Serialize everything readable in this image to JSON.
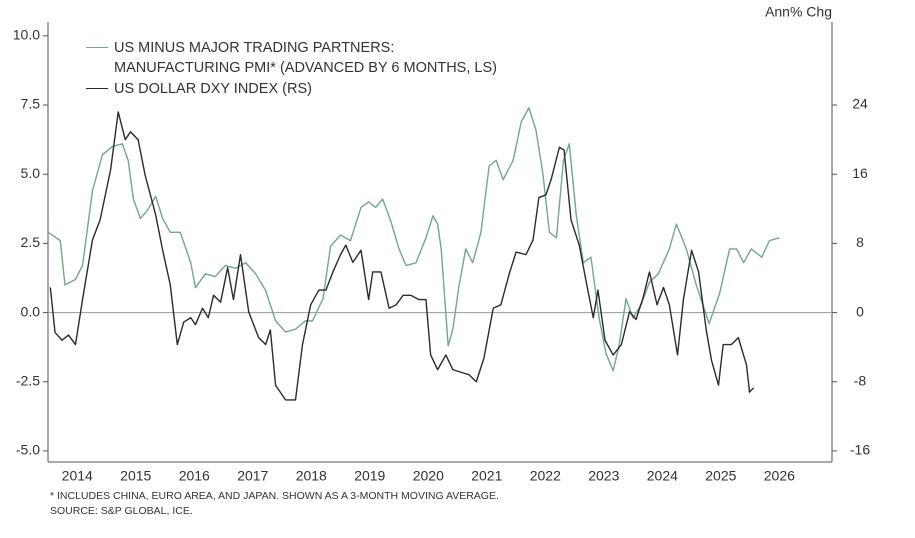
{
  "chart_data": {
    "type": "line",
    "y2_label": "Ann% Chg",
    "xlim": [
      2014.0,
      2027.4
    ],
    "xticks": [
      {
        "value": 2014.5,
        "label": "2014"
      },
      {
        "value": 2015.5,
        "label": "2015"
      },
      {
        "value": 2016.5,
        "label": "2016"
      },
      {
        "value": 2017.5,
        "label": "2017"
      },
      {
        "value": 2018.5,
        "label": "2018"
      },
      {
        "value": 2019.5,
        "label": "2019"
      },
      {
        "value": 2020.5,
        "label": "2020"
      },
      {
        "value": 2021.5,
        "label": "2021"
      },
      {
        "value": 2022.5,
        "label": "2022"
      },
      {
        "value": 2023.5,
        "label": "2023"
      },
      {
        "value": 2024.5,
        "label": "2024"
      },
      {
        "value": 2025.5,
        "label": "2025"
      },
      {
        "value": 2026.5,
        "label": "2026"
      }
    ],
    "ylim": [
      -5.4,
      10.5
    ],
    "yticks": [
      {
        "value": 10,
        "label": "10.0"
      },
      7.5,
      {
        "value": 5,
        "label": "5.0"
      },
      2.5,
      {
        "value": 0,
        "label": "0.0"
      },
      -2.5,
      {
        "value": -5,
        "label": "-5.0"
      }
    ],
    "y2lim": [
      -17.28,
      33.6
    ],
    "y2ticks": [
      24,
      16,
      8,
      0,
      -8,
      -16
    ],
    "zero_line": true,
    "series": [
      {
        "name": "US MINUS MAJOR TRADING PARTNERS:\nMANUFACTURING PMI* (ADVANCED BY 6 MONTHS, LS)",
        "color": "#6fa98b",
        "axis": "y",
        "x": [
          2014.0,
          2014.21,
          2014.29,
          2014.47,
          2014.59,
          2014.76,
          2014.93,
          2015.1,
          2015.27,
          2015.37,
          2015.46,
          2015.58,
          2015.7,
          2015.84,
          2015.96,
          2016.09,
          2016.26,
          2016.44,
          2016.52,
          2016.69,
          2016.86,
          2017.03,
          2017.21,
          2017.38,
          2017.55,
          2017.72,
          2017.89,
          2018.06,
          2018.23,
          2018.4,
          2018.52,
          2018.7,
          2018.83,
          2019.0,
          2019.17,
          2019.35,
          2019.48,
          2019.6,
          2019.72,
          2019.86,
          2020.0,
          2020.12,
          2020.29,
          2020.46,
          2020.58,
          2020.66,
          2020.72,
          2020.84,
          2020.92,
          2021.02,
          2021.14,
          2021.26,
          2021.4,
          2021.54,
          2021.66,
          2021.78,
          2021.95,
          2022.09,
          2022.22,
          2022.34,
          2022.46,
          2022.57,
          2022.69,
          2022.81,
          2022.91,
          2023.03,
          2023.15,
          2023.28,
          2023.42,
          2023.54,
          2023.66,
          2023.76,
          2023.88,
          2024.0,
          2024.14,
          2024.28,
          2024.43,
          2024.62,
          2024.74,
          2024.91,
          2025.08,
          2025.3,
          2025.48,
          2025.65,
          2025.77,
          2025.89,
          2026.02,
          2026.2,
          2026.33,
          2026.5
        ],
        "values": [
          2.9,
          2.6,
          1.0,
          1.2,
          1.7,
          4.4,
          5.7,
          6.0,
          6.1,
          5.5,
          4.1,
          3.4,
          3.7,
          4.2,
          3.4,
          2.9,
          2.9,
          1.8,
          0.9,
          1.4,
          1.3,
          1.7,
          1.6,
          1.8,
          1.4,
          0.8,
          -0.3,
          -0.7,
          -0.6,
          -0.3,
          -0.3,
          0.5,
          2.4,
          2.8,
          2.6,
          3.8,
          4.0,
          3.8,
          4.1,
          3.3,
          2.3,
          1.7,
          1.8,
          2.7,
          3.5,
          3.2,
          2.3,
          -1.2,
          -0.6,
          0.9,
          2.3,
          1.8,
          2.9,
          5.3,
          5.5,
          4.8,
          5.5,
          6.9,
          7.4,
          6.6,
          5.0,
          2.9,
          2.7,
          5.5,
          6.1,
          3.5,
          1.8,
          2.0,
          -0.2,
          -1.5,
          -2.1,
          -1.2,
          0.5,
          -0.2,
          0.3,
          1.1,
          1.4,
          2.3,
          3.2,
          2.3,
          1.0,
          -0.4,
          0.7,
          2.3,
          2.3,
          1.8,
          2.3,
          2.0,
          2.6,
          2.7
        ]
      },
      {
        "name": "US DOLLAR DXY INDEX (RS)",
        "color": "#2b2b2b",
        "axis": "y2",
        "x": [
          2014.04,
          2014.12,
          2014.24,
          2014.35,
          2014.47,
          2014.59,
          2014.76,
          2014.89,
          2015.07,
          2015.2,
          2015.32,
          2015.41,
          2015.54,
          2015.66,
          2015.84,
          2015.96,
          2016.09,
          2016.21,
          2016.32,
          2016.44,
          2016.52,
          2016.64,
          2016.74,
          2016.83,
          2016.95,
          2017.07,
          2017.17,
          2017.29,
          2017.43,
          2017.6,
          2017.72,
          2017.8,
          2017.89,
          2018.06,
          2018.23,
          2018.35,
          2018.49,
          2018.63,
          2018.75,
          2018.87,
          2019.0,
          2019.09,
          2019.21,
          2019.35,
          2019.48,
          2019.55,
          2019.69,
          2019.83,
          2019.95,
          2020.07,
          2020.2,
          2020.34,
          2020.46,
          2020.54,
          2020.66,
          2020.8,
          2020.92,
          2021.06,
          2021.2,
          2021.32,
          2021.45,
          2021.61,
          2021.74,
          2021.88,
          2022.0,
          2022.17,
          2022.29,
          2022.39,
          2022.51,
          2022.6,
          2022.74,
          2022.82,
          2022.94,
          2023.08,
          2023.2,
          2023.32,
          2023.4,
          2023.52,
          2023.66,
          2023.8,
          2023.94,
          2024.05,
          2024.17,
          2024.28,
          2024.41,
          2024.52,
          2024.62,
          2024.76,
          2024.86,
          2025.0,
          2025.12,
          2025.25,
          2025.34,
          2025.46,
          2025.54,
          2025.68,
          2025.8,
          2025.94,
          2025.99,
          2026.06
        ],
        "values": [
          2.9,
          -2.3,
          -3.2,
          -2.6,
          -3.7,
          1.5,
          8.4,
          10.7,
          16.5,
          23.2,
          20.0,
          20.9,
          20.0,
          15.9,
          11.3,
          7.2,
          3.2,
          -3.7,
          -1.1,
          -0.6,
          -1.4,
          0.5,
          -0.6,
          2.0,
          1.2,
          5.2,
          1.5,
          6.7,
          0.1,
          -2.9,
          -3.7,
          -2.0,
          -8.4,
          -10.1,
          -10.1,
          -3.7,
          0.9,
          2.6,
          2.6,
          4.7,
          6.7,
          7.8,
          5.8,
          7.2,
          1.5,
          4.7,
          4.7,
          0.5,
          0.9,
          2.0,
          2.0,
          1.5,
          1.5,
          -4.9,
          -6.6,
          -4.9,
          -6.6,
          -6.9,
          -7.2,
          -8.0,
          -5.3,
          0.5,
          0.9,
          4.4,
          7.0,
          6.7,
          8.4,
          13.3,
          13.6,
          15.4,
          19.1,
          18.8,
          10.7,
          7.8,
          3.5,
          -0.6,
          2.6,
          -3.2,
          -4.9,
          -3.7,
          0.1,
          -0.8,
          1.7,
          4.7,
          0.9,
          2.9,
          0.9,
          -4.9,
          1.5,
          7.2,
          4.7,
          -2.0,
          -5.5,
          -8.4,
          -3.7,
          -3.7,
          -2.9,
          -6.1,
          -9.2,
          -8.7
        ]
      }
    ],
    "notes": [
      "* INCLUDES CHINA, EURO AREA, AND JAPAN. SHOWN AS A 3-MONTH MOVING AVERAGE.",
      "SOURCE: S&P GLOBAL, ICE."
    ]
  }
}
